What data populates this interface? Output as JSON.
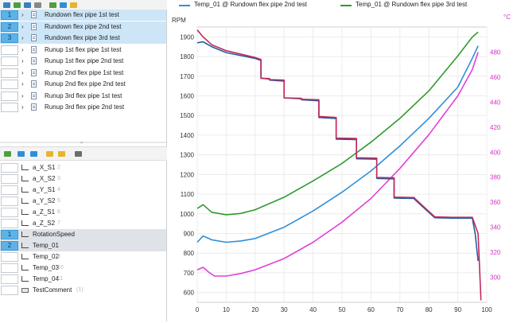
{
  "tests_panel": {
    "rows": [
      {
        "index": "1",
        "label": "Rundown flex pipe 1st test",
        "selected": true
      },
      {
        "index": "2",
        "label": "Rundown flex pipe 2nd test",
        "selected": true
      },
      {
        "index": "3",
        "label": "Rundown flex pipe 3rd test",
        "selected": true
      },
      {
        "index": "",
        "label": "Runup 1st flex pipe 1st test",
        "selected": false
      },
      {
        "index": "",
        "label": "Runup 1st flex pipe 2nd test",
        "selected": false
      },
      {
        "index": "",
        "label": "Runup 2nd flex pipe 1st test",
        "selected": false
      },
      {
        "index": "",
        "label": "Runup 2nd flex pipe 2nd test",
        "selected": false
      },
      {
        "index": "",
        "label": "Runup 3rd flex pipe 1st test",
        "selected": false
      },
      {
        "index": "",
        "label": "Runup 3rd flex pipe 2nd test",
        "selected": false
      }
    ]
  },
  "channels_panel": {
    "rows": [
      {
        "index": "",
        "label": "a_X_S1",
        "count": "2",
        "selected": false
      },
      {
        "index": "",
        "label": "a_X_S2",
        "count": "3",
        "selected": false
      },
      {
        "index": "",
        "label": "a_Y_S1",
        "count": "4",
        "selected": false
      },
      {
        "index": "",
        "label": "a_Y_S2",
        "count": "5",
        "selected": false
      },
      {
        "index": "",
        "label": "a_Z_S1",
        "count": "6",
        "selected": false
      },
      {
        "index": "",
        "label": "a_Z_S2",
        "count": "7",
        "selected": false
      },
      {
        "index": "1",
        "label": "RotationSpeed",
        "count": "",
        "selected": true
      },
      {
        "index": "2",
        "label": "Temp_01",
        "count": "",
        "selected": true
      },
      {
        "index": "",
        "label": "Temp_02",
        "count": "9",
        "selected": false
      },
      {
        "index": "",
        "label": "Temp_03",
        "count": "10",
        "selected": false
      },
      {
        "index": "",
        "label": "Temp_04",
        "count": "11",
        "selected": false
      },
      {
        "index": "",
        "label": "TestComment",
        "count": "(1)",
        "selected": false
      }
    ]
  },
  "colors": {
    "blue": "#2e8fd9",
    "dark_blue": "#1f5fa0",
    "green": "#2f9a2f",
    "magenta": "#e23fd8",
    "crimson": "#c4285a",
    "right_axis": "#d236c6",
    "selection": "#cde6f7",
    "index_selected": "#5cb3e8"
  },
  "icons": [
    "open-icon",
    "save-icon",
    "export-icon",
    "sort-icon",
    "lock-icon",
    "unlock-icon",
    "filter-icon"
  ],
  "chart_data": {
    "type": "line",
    "legend_position": "top",
    "grid": true,
    "left_axis": {
      "label": "RPM",
      "ylim": [
        550,
        1950
      ],
      "ticks": [
        "1900",
        "1800",
        "1700",
        "1600",
        "1500",
        "1400",
        "1300",
        "1200",
        "1100",
        "1000",
        "900",
        "800",
        "700",
        "600"
      ]
    },
    "right_axis": {
      "label": "°C",
      "ylim": [
        280,
        500
      ],
      "ticks": [
        "480",
        "460",
        "440",
        "420",
        "400",
        "380",
        "360",
        "340",
        "320",
        "300"
      ]
    },
    "x_axis": {
      "xlim": [
        0,
        100
      ],
      "ticks": [
        "0",
        "10",
        "20",
        "30",
        "40",
        "50",
        "60",
        "70",
        "80",
        "90",
        "100"
      ]
    },
    "series": [
      {
        "name": "Temp_01 @ Rundown flex pipe 2nd test",
        "axis": "right",
        "color": "#2e8fd9",
        "x": [
          0,
          2,
          5,
          10,
          15,
          20,
          30,
          40,
          50,
          60,
          70,
          80,
          90,
          95,
          97
        ],
        "y": [
          328,
          333,
          330,
          328,
          329,
          331,
          340,
          353,
          368,
          385,
          405,
          427,
          452,
          475,
          485
        ]
      },
      {
        "name": "Temp_01 @ Rundown flex pipe 3rd test",
        "axis": "right",
        "color": "#2f9a2f",
        "x": [
          0,
          2,
          5,
          10,
          15,
          20,
          30,
          40,
          50,
          60,
          70,
          80,
          90,
          95,
          97
        ],
        "y": [
          355,
          358,
          352,
          350,
          351,
          354,
          364,
          377,
          391,
          408,
          427,
          449,
          477,
          492,
          496
        ]
      },
      {
        "name": "",
        "axis": "right",
        "color": "#e23fd8",
        "x": [
          0,
          2,
          4,
          6,
          10,
          15,
          20,
          30,
          40,
          50,
          60,
          70,
          80,
          90,
          95,
          97
        ],
        "y": [
          306,
          308,
          304,
          301,
          301,
          303,
          306,
          315,
          328,
          344,
          363,
          387,
          414,
          445,
          466,
          480
        ]
      },
      {
        "name": "",
        "axis": "left",
        "color": "#1f5fa0",
        "x": [
          0,
          2,
          5,
          10,
          20,
          22,
          22,
          25,
          25,
          30,
          30,
          36,
          36,
          42,
          42,
          48,
          48,
          55,
          55,
          62,
          62,
          68,
          68,
          75,
          75,
          82,
          82,
          88,
          88,
          95,
          96,
          97
        ],
        "y": [
          1870,
          1875,
          1850,
          1820,
          1790,
          1780,
          1690,
          1685,
          1680,
          1675,
          1590,
          1585,
          1580,
          1575,
          1490,
          1485,
          1380,
          1378,
          1280,
          1278,
          1180,
          1178,
          1080,
          1078,
          1075,
          980,
          980,
          978,
          978,
          978,
          900,
          760
        ]
      },
      {
        "name": "",
        "axis": "left",
        "color": "#c4285a",
        "x": [
          0,
          2,
          5,
          10,
          20,
          22,
          22,
          25,
          25,
          30,
          30,
          36,
          36,
          42,
          42,
          48,
          48,
          55,
          55,
          62,
          62,
          68,
          68,
          75,
          75,
          82,
          82,
          88,
          88,
          95,
          97,
          98
        ],
        "y": [
          1935,
          1900,
          1860,
          1830,
          1795,
          1785,
          1690,
          1688,
          1683,
          1680,
          1590,
          1588,
          1583,
          1580,
          1495,
          1490,
          1385,
          1383,
          1285,
          1283,
          1185,
          1183,
          1085,
          1083,
          1080,
          985,
          985,
          982,
          982,
          982,
          900,
          560
        ]
      }
    ]
  }
}
